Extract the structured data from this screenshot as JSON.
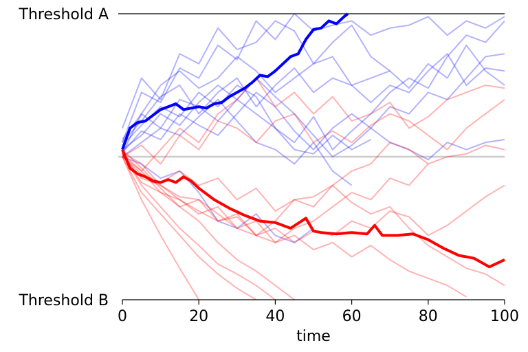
{
  "chart_data": {
    "type": "line",
    "xlabel": "time",
    "xlim": [
      0,
      100
    ],
    "ylim": [
      -1,
      1
    ],
    "x_ticks": [
      0,
      20,
      40,
      60,
      80,
      100
    ],
    "threshold_labels": [
      {
        "text": "Threshold A",
        "y": 1
      },
      {
        "text": "Threshold B",
        "y": -1
      }
    ],
    "baseline": 0,
    "colors": {
      "upper": "#0000ff",
      "lower": "#ff0000",
      "baseline": "#cccccc",
      "threshold": "#000000"
    },
    "highlight_series": [
      {
        "color": "#0000ff",
        "x": [
          0,
          2,
          4,
          6,
          8,
          10,
          12,
          14,
          16,
          18,
          20,
          22,
          24,
          26,
          28,
          30,
          32,
          34,
          36,
          38,
          40,
          42,
          44,
          46,
          48,
          50,
          52,
          54,
          56,
          58,
          59
        ],
        "y": [
          0.05,
          0.2,
          0.24,
          0.25,
          0.29,
          0.33,
          0.35,
          0.37,
          0.33,
          0.34,
          0.35,
          0.34,
          0.37,
          0.38,
          0.42,
          0.45,
          0.48,
          0.52,
          0.57,
          0.56,
          0.6,
          0.65,
          0.7,
          0.72,
          0.82,
          0.89,
          0.9,
          0.95,
          0.93,
          0.98,
          1.0
        ]
      },
      {
        "color": "#ff0000",
        "x": [
          0,
          2,
          4,
          6,
          8,
          10,
          12,
          14,
          16,
          18,
          20,
          24,
          28,
          32,
          36,
          40,
          44,
          48,
          50,
          52,
          56,
          60,
          64,
          66,
          68,
          72,
          76,
          80,
          84,
          88,
          92,
          96,
          100
        ],
        "y": [
          0.05,
          -0.08,
          -0.12,
          -0.14,
          -0.17,
          -0.18,
          -0.16,
          -0.18,
          -0.14,
          -0.17,
          -0.22,
          -0.3,
          -0.36,
          -0.41,
          -0.45,
          -0.46,
          -0.5,
          -0.43,
          -0.52,
          -0.53,
          -0.54,
          -0.53,
          -0.54,
          -0.48,
          -0.55,
          -0.55,
          -0.54,
          -0.58,
          -0.64,
          -0.69,
          -0.71,
          -0.77,
          -0.72
        ]
      }
    ],
    "background_series": [
      {
        "color": "#0000ff",
        "x": [
          0,
          5,
          10,
          15,
          20,
          25,
          30,
          35,
          40,
          45,
          50,
          55,
          60,
          65,
          70,
          75,
          80,
          85,
          90,
          95,
          100
        ],
        "y": [
          0.1,
          0.45,
          0.38,
          0.62,
          0.55,
          0.78,
          0.68,
          0.95,
          0.82,
          1.0,
          0.88,
          0.92,
          0.95,
          0.85,
          0.9,
          0.92,
          0.98,
          0.85,
          0.95,
          0.9,
          0.98
        ]
      },
      {
        "color": "#0000ff",
        "x": [
          0,
          5,
          10,
          15,
          20,
          25,
          30,
          35,
          40,
          45,
          50,
          55,
          60,
          65,
          70,
          75,
          80,
          85,
          90,
          95,
          100
        ],
        "y": [
          0.2,
          0.55,
          0.4,
          0.72,
          0.65,
          0.9,
          0.75,
          0.8,
          0.95,
          0.88,
          0.65,
          0.8,
          0.92,
          0.7,
          0.6,
          0.48,
          0.65,
          0.55,
          0.78,
          0.6,
          0.5
        ]
      },
      {
        "color": "#0000ff",
        "x": [
          0,
          5,
          10,
          15,
          20,
          25,
          30,
          35,
          40,
          45,
          50,
          55,
          60,
          65,
          70,
          75,
          80,
          85,
          90,
          95,
          100
        ],
        "y": [
          0.1,
          0.25,
          0.42,
          0.5,
          0.3,
          0.45,
          0.55,
          0.35,
          0.5,
          0.62,
          0.45,
          0.55,
          0.5,
          0.38,
          0.5,
          0.45,
          0.6,
          0.72,
          0.5,
          0.62,
          0.6
        ]
      },
      {
        "color": "#0000ff",
        "x": [
          0,
          5,
          10,
          15,
          20,
          25,
          30,
          35,
          40,
          45,
          50,
          55,
          60,
          65,
          70,
          75,
          80,
          85,
          90,
          95,
          100
        ],
        "y": [
          0.02,
          0.3,
          0.2,
          0.4,
          0.35,
          0.25,
          0.4,
          0.3,
          0.2,
          0.1,
          0.28,
          0.05,
          0.18,
          0.3,
          0.45,
          0.55,
          0.48,
          0.7,
          0.85,
          0.8,
          0.95
        ]
      },
      {
        "color": "#0000ff",
        "x": [
          0,
          5,
          10,
          15,
          20,
          25,
          30,
          35,
          40,
          45,
          50,
          55,
          60,
          65,
          70,
          75,
          80,
          85,
          90,
          95,
          100
        ],
        "y": [
          0.05,
          0.15,
          0.3,
          0.22,
          0.38,
          0.5,
          0.4,
          0.55,
          0.42,
          0.3,
          0.15,
          0.0,
          0.08,
          0.2,
          0.35,
          0.3,
          0.45,
          0.4,
          0.55,
          0.7,
          0.72
        ]
      },
      {
        "color": "#0000ff",
        "x": [
          0,
          5,
          10,
          15,
          20,
          25,
          30,
          35,
          40,
          45,
          50,
          55,
          60
        ],
        "y": [
          0.0,
          0.1,
          0.2,
          0.15,
          0.28,
          0.4,
          0.25,
          0.1,
          0.05,
          -0.05,
          0.1,
          -0.1,
          -0.2
        ]
      },
      {
        "color": "#0000ff",
        "x": [
          0,
          5,
          10,
          15,
          20,
          25,
          30,
          35,
          40,
          45,
          50,
          55,
          60,
          65
        ],
        "y": [
          0.08,
          0.22,
          0.35,
          0.28,
          0.45,
          0.35,
          0.5,
          0.42,
          0.2,
          0.05,
          0.02,
          0.15,
          0.05,
          0.12
        ]
      },
      {
        "color": "#0000ff",
        "x": [
          0,
          5,
          10,
          15,
          20,
          25,
          30,
          35,
          40,
          45,
          50
        ],
        "y": [
          0.0,
          -0.05,
          -0.15,
          -0.1,
          -0.25,
          -0.45,
          -0.5,
          -0.4,
          -0.55,
          -0.6,
          -0.5
        ]
      },
      {
        "color": "#0000ff",
        "x": [
          0,
          5,
          10,
          15,
          20,
          25,
          30,
          35,
          40,
          45,
          50,
          55,
          60,
          65,
          70
        ],
        "y": [
          0.12,
          0.3,
          0.5,
          0.6,
          0.48,
          0.55,
          0.7,
          0.6,
          0.45,
          0.55,
          0.65,
          0.7,
          0.5,
          0.55,
          0.6
        ]
      },
      {
        "color": "#0000ff",
        "x": [
          0,
          5,
          10,
          15,
          20,
          25,
          30,
          35,
          40,
          45,
          50,
          55,
          60,
          65,
          70,
          75,
          80,
          85,
          90,
          95,
          100
        ],
        "y": [
          0.03,
          0.18,
          0.12,
          0.3,
          0.22,
          0.15,
          0.3,
          0.45,
          0.35,
          0.18,
          0.05,
          0.2,
          0.3,
          0.2,
          0.1,
          0.05,
          -0.02,
          0.1,
          0.05,
          0.1,
          0.12
        ]
      },
      {
        "color": "#ff0000",
        "x": [
          0,
          5,
          10,
          15,
          20,
          25,
          30,
          35,
          40,
          45,
          50,
          55,
          60,
          65,
          70,
          75,
          80,
          85,
          90,
          95,
          100
        ],
        "y": [
          0.02,
          -0.1,
          0.05,
          0.2,
          0.1,
          0.3,
          0.4,
          0.55,
          0.35,
          0.45,
          0.3,
          0.42,
          0.25,
          0.3,
          0.38,
          0.2,
          0.28,
          0.4,
          0.45,
          0.5,
          0.48
        ]
      },
      {
        "color": "#ff0000",
        "x": [
          0,
          5,
          10,
          15,
          20,
          25,
          30,
          35,
          40,
          45,
          50,
          55,
          60,
          65,
          70,
          75,
          80,
          85,
          90,
          95,
          100
        ],
        "y": [
          0.0,
          0.08,
          -0.05,
          0.15,
          0.05,
          0.25,
          0.2,
          0.1,
          0.25,
          0.3,
          0.1,
          0.18,
          0.1,
          0.22,
          0.3,
          0.25,
          0.15,
          0.05,
          0.2,
          0.3,
          0.4
        ]
      },
      {
        "color": "#ff0000",
        "x": [
          0,
          5,
          10,
          15,
          20,
          25,
          30,
          35,
          40,
          45,
          50,
          55,
          60,
          65,
          70,
          75,
          80,
          85,
          90,
          95,
          100
        ],
        "y": [
          0.01,
          -0.15,
          -0.2,
          -0.3,
          -0.4,
          -0.35,
          -0.5,
          -0.55,
          -0.45,
          -0.3,
          -0.35,
          -0.2,
          -0.1,
          -0.05,
          0.1,
          0.05,
          -0.05,
          0.0,
          0.02,
          0.08,
          0.05
        ]
      },
      {
        "color": "#ff0000",
        "x": [
          0,
          5,
          10,
          15,
          20,
          25,
          30,
          35,
          40,
          45,
          50,
          55,
          60,
          65,
          70,
          75,
          80
        ],
        "y": [
          0.0,
          -0.1,
          -0.25,
          -0.35,
          -0.3,
          -0.45,
          -0.4,
          -0.55,
          -0.6,
          -0.5,
          -0.45,
          -0.35,
          -0.25,
          -0.3,
          -0.15,
          -0.2,
          -0.05
        ]
      },
      {
        "color": "#ff0000",
        "x": [
          0,
          5,
          10,
          15,
          20,
          25,
          30,
          35,
          40,
          45,
          50,
          55,
          60,
          65,
          70,
          75,
          80,
          85,
          90
        ],
        "y": [
          0.03,
          -0.05,
          -0.2,
          -0.28,
          -0.3,
          -0.4,
          -0.5,
          -0.45,
          -0.6,
          -0.55,
          -0.65,
          -0.6,
          -0.7,
          -0.62,
          -0.72,
          -0.8,
          -0.85,
          -0.9,
          -0.98
        ]
      },
      {
        "color": "#ff0000",
        "x": [
          0,
          5,
          10,
          15,
          20,
          25,
          30,
          35,
          40,
          45,
          50,
          55,
          60,
          65,
          70,
          75,
          80,
          85,
          90,
          95,
          100
        ],
        "y": [
          0.0,
          -0.12,
          -0.18,
          -0.1,
          -0.2,
          -0.15,
          -0.3,
          -0.22,
          -0.38,
          -0.3,
          -0.28,
          -0.2,
          -0.32,
          -0.4,
          -0.35,
          -0.5,
          -0.62,
          -0.7,
          -0.78,
          -0.82,
          -0.9
        ]
      },
      {
        "color": "#ff0000",
        "x": [
          0,
          5,
          10,
          15,
          20,
          25,
          30,
          35,
          40
        ],
        "y": [
          0.02,
          -0.2,
          -0.35,
          -0.5,
          -0.62,
          -0.75,
          -0.82,
          -0.9,
          -1.0
        ]
      },
      {
        "color": "#ff0000",
        "x": [
          0,
          5,
          10,
          15,
          20,
          25,
          30,
          35
        ],
        "y": [
          0.0,
          -0.25,
          -0.4,
          -0.55,
          -0.7,
          -0.82,
          -0.92,
          -1.0
        ]
      },
      {
        "color": "#ff0000",
        "x": [
          0,
          5,
          10,
          15,
          20,
          25,
          30,
          35,
          40,
          45
        ],
        "y": [
          0.05,
          -0.08,
          -0.22,
          -0.35,
          -0.45,
          -0.6,
          -0.72,
          -0.8,
          -0.9,
          -1.0
        ]
      },
      {
        "color": "#ff0000",
        "x": [
          0,
          5,
          10,
          15,
          20
        ],
        "y": [
          0.0,
          -0.3,
          -0.55,
          -0.78,
          -1.0
        ]
      },
      {
        "color": "#ff0000",
        "x": [
          0,
          5,
          10,
          15,
          20,
          25,
          30,
          35,
          40,
          45,
          50,
          55,
          60,
          65,
          70,
          75,
          80,
          85,
          90,
          95,
          100
        ],
        "y": [
          0.02,
          -0.18,
          -0.25,
          -0.3,
          -0.38,
          -0.45,
          -0.42,
          -0.55,
          -0.5,
          -0.6,
          -0.52,
          -0.55,
          -0.45,
          -0.5,
          -0.38,
          -0.42,
          -0.55,
          -0.48,
          -0.38,
          -0.28,
          -0.2
        ]
      }
    ]
  }
}
